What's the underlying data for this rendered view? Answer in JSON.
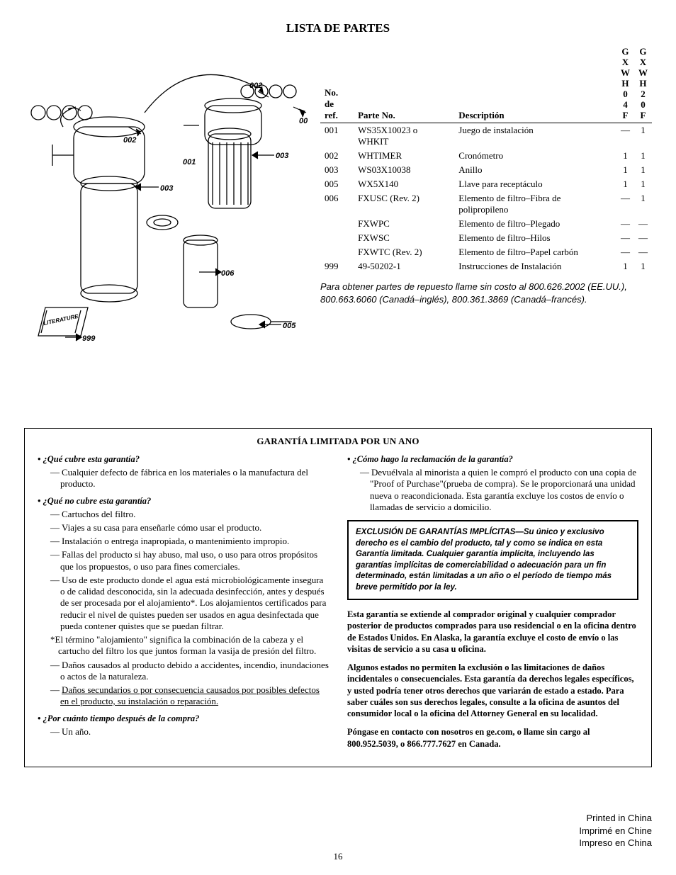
{
  "title": "LISTA DE PARTES",
  "page_number": "16",
  "diagram": {
    "labels": [
      "001",
      "002",
      "003",
      "005",
      "006",
      "999"
    ],
    "literature_label": "LITERATURE"
  },
  "table": {
    "headers": {
      "ref": "No.\nde ref.",
      "part": "Parte No.",
      "desc": "Descriptión",
      "col_a": [
        "G",
        "X",
        "W",
        "H",
        "0",
        "4",
        "F"
      ],
      "col_b": [
        "G",
        "X",
        "W",
        "H",
        "2",
        "0",
        "F"
      ]
    },
    "rows": [
      {
        "ref": "001",
        "part": "WS35X10023 o WHKIT",
        "desc": "Juego de instalación",
        "a": "—",
        "b": "1"
      },
      {
        "ref": "002",
        "part": "WHTIMER",
        "desc": "Cronómetro",
        "a": "1",
        "b": "1"
      },
      {
        "ref": "003",
        "part": "WS03X10038",
        "desc": "Anillo",
        "a": "1",
        "b": "1"
      },
      {
        "ref": "005",
        "part": "WX5X140",
        "desc": "Llave para receptáculo",
        "a": "1",
        "b": "1"
      },
      {
        "ref": "006",
        "part": "FXUSC (Rev. 2)",
        "desc": "Elemento de filtro–Fibra de polipropileno",
        "a": "—",
        "b": "1"
      },
      {
        "ref": "",
        "part": "FXWPC",
        "desc": "Elemento de filtro–Plegado",
        "a": "—",
        "b": "—"
      },
      {
        "ref": "",
        "part": "FXWSC",
        "desc": "Elemento de filtro–Hilos",
        "a": "—",
        "b": "—"
      },
      {
        "ref": "",
        "part": "FXWTC (Rev. 2)",
        "desc": "Elemento de filtro–Papel carbón",
        "a": "—",
        "b": "—"
      },
      {
        "ref": "999",
        "part": "49-50202-1",
        "desc": "Instrucciones de Instalación",
        "a": "1",
        "b": "1"
      }
    ],
    "note": "Para obtener partes de repuesto llame sin costo al 800.626.2002 (EE.UU.), 800.663.6060 (Canadá–inglés), 800.361.3869 (Canadá–francés)."
  },
  "warranty": {
    "heading": "GARANTÍA LIMITADA POR UN ANO",
    "left": [
      {
        "q": "• ¿Qué cubre esta garantía?",
        "items": [
          "Cualquier defecto de fábrica en los materiales o la manufactura del producto."
        ]
      },
      {
        "q": "• ¿Qué no cubre esta garantía?",
        "items": [
          "Cartuchos del filtro.",
          "Viajes a su casa para enseñarle cómo usar el producto.",
          "Instalación o entrega inapropiada, o mantenimiento impropio.",
          "Fallas del producto si hay abuso, mal uso, o uso para otros propósitos que los propuestos, o uso para fines comerciales.",
          "Uso de este producto donde el agua está microbiológicamente insegura o de calidad desconocida, sin la adecuada desinfección, antes y después de ser procesada por el alojamiento*. Los alojamientos certificados para reducir el nivel de quistes pueden ser usados en agua desinfectada que pueda contener quistes que se puedan filtrar."
        ],
        "star": "*El término \"alojamiento\" significa la combinación de la cabeza y el cartucho del filtro los que juntos forman la vasija de presión del filtro.",
        "items2": [
          "Daños causados al producto debido a accidentes, incendio, inundaciones o actos de la naturaleza."
        ],
        "underlined": "Daños secundarios o por consecuencia causados por posibles defectos en el producto, su instalación o reparación."
      },
      {
        "q": "• ¿Por cuánto tiempo después de la compra?",
        "items": [
          "Un año."
        ]
      }
    ],
    "right_q": "• ¿Cómo hago la reclamación de la garantía?",
    "right_item": "Devuélvala al minorista a quien le compró el producto con una copia de \"Proof of Purchase\"(prueba de compra). Se le proporcionará una unidad nueva o reacondicionada. Esta garantía excluye los costos de envío o llamadas de servicio a domicilio.",
    "exclusion_title": "EXCLUSIÓN DE GARANTÍAS IMPLÍCITAS",
    "exclusion_body": "—Su único y exclusivo derecho es el cambio del producto, tal y como se indica en esta Garantía limitada. Cualquier garantía implícita, incluyendo las garantías implícitas de comerciabilidad o adecuación para un fin determinado, están limitadas a un año o el período de tiempo más breve permitido por la ley.",
    "para1": "Esta garantía se extiende al comprador original y cualquier comprador posterior de productos comprados para uso residencial o en la oficina dentro de Estados Unidos. En Alaska, la garantía excluye el costo de envío o las visitas de servicio a su casa u oficina.",
    "para2": "Algunos estados no permiten la exclusión o las limitaciones de daños incidentales o consecuenciales. Esta garantía da derechos legales específicos, y usted podría tener otros derechos que variarán de estado a estado. Para saber cuáles son sus derechos legales, consulte a la oficina de asuntos del consumidor local o la oficina del Attorney General en su localidad.",
    "para3": "Póngase en contacto con nosotros en ge.com, o llame sin cargo al 800.952.5039, o 866.777.7627 en Canada."
  },
  "footer": {
    "l1": "Printed in China",
    "l2": "Imprimé en Chine",
    "l3": "Impreso en China"
  }
}
